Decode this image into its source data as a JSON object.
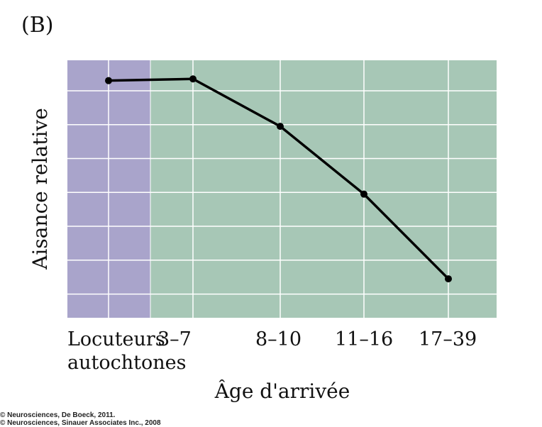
{
  "panel_label": "(B)",
  "copyright": [
    "© Neurosciences, De Boeck, 2011.",
    "© Neurosciences, Sinauer Associates Inc., 2008"
  ],
  "colors": {
    "native_region": "#a9a4cb",
    "learner_region": "#a7c7b6",
    "grid": "#ffffff",
    "line": "#000000"
  },
  "chart_data": {
    "type": "line",
    "title": "",
    "xlabel": "Âge d'arrivée",
    "ylabel": "Aisance relative",
    "categories": [
      [
        "Locuteurs",
        "autochtones"
      ],
      [
        "3–7"
      ],
      [
        "8–10"
      ],
      [
        "11–16"
      ],
      [
        "17–39"
      ]
    ],
    "values": [
      7.0,
      7.05,
      5.65,
      3.65,
      1.15
    ],
    "ylim": [
      0,
      7.6
    ],
    "grid": true,
    "shaded_regions": [
      {
        "from_category": 0,
        "to_boundary": 0.5,
        "color": "#a9a4cb"
      },
      {
        "from_boundary": 0.5,
        "to_category": 4,
        "color": "#a7c7b6"
      }
    ]
  }
}
